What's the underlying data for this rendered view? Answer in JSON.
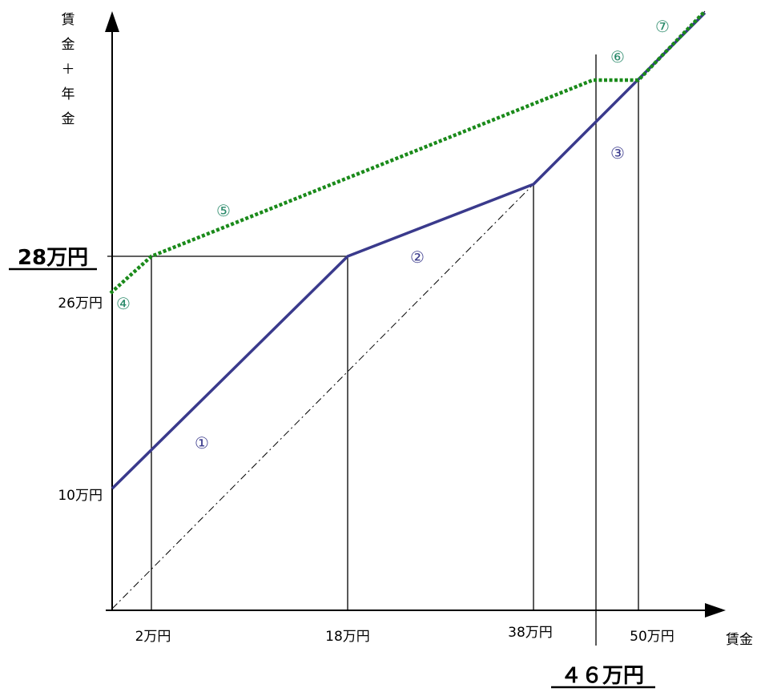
{
  "chart_data": {
    "type": "line",
    "y_axis_label": "賃金＋年金",
    "x_axis_label": "賃金",
    "x_ticks": [
      "2万円",
      "18万円",
      "38万円",
      "50万円"
    ],
    "y_ticks": [
      "10万円",
      "26万円"
    ],
    "highlight_labels": {
      "y": "28万円",
      "x": "４６万円"
    },
    "colors": {
      "blue": "#3a3a8c",
      "green": "#1a8a1a",
      "marker_blue": "#3a3a8c",
      "marker_green": "#2a8a6a"
    },
    "markers": [
      {
        "text": "①",
        "series": "blue"
      },
      {
        "text": "②",
        "series": "blue"
      },
      {
        "text": "③",
        "series": "blue"
      },
      {
        "text": "④",
        "series": "green"
      },
      {
        "text": "⑤",
        "series": "green"
      },
      {
        "text": "⑥",
        "series": "green"
      },
      {
        "text": "⑦",
        "series": "green"
      }
    ]
  }
}
